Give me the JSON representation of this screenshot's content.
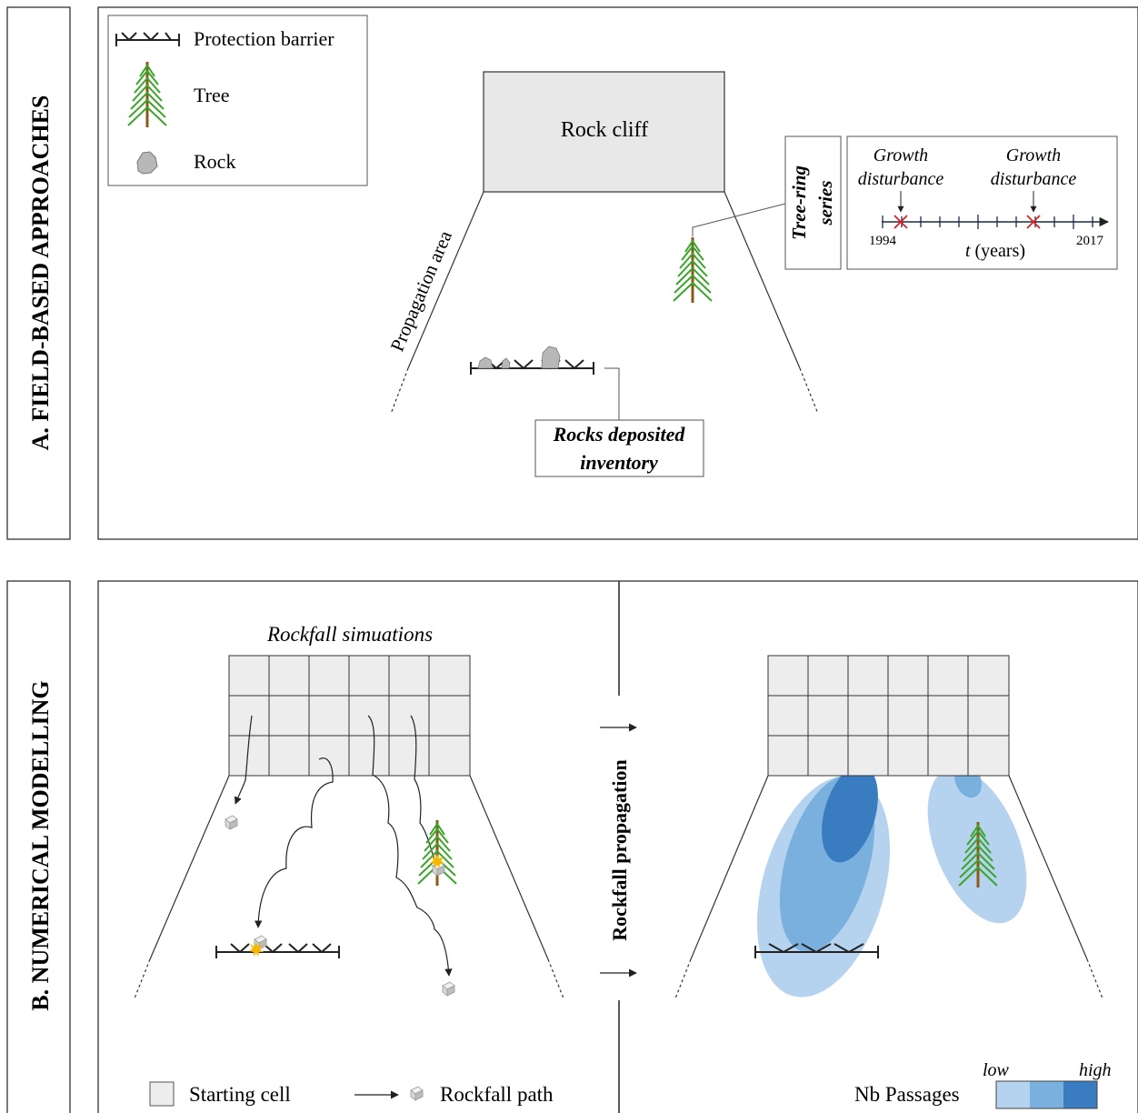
{
  "panel_a": {
    "side_title": "A. FIELD-BASED APPROACHES",
    "legend": {
      "barrier_label": "Protection barrier",
      "tree_label": "Tree",
      "rock_label": "Rock"
    },
    "cliff_label": "Rock cliff",
    "propagation_label": "Propagation area",
    "tree_ring": {
      "label_line1": "Tree-ring",
      "label_line2": "series",
      "disturbance1_line1": "Growth",
      "disturbance1_line2": "disturbance",
      "disturbance2_line1": "Growth",
      "disturbance2_line2": "disturbance",
      "start_year": "1994",
      "end_year": "2017",
      "axis_var": "t",
      "axis_unit": " (years)"
    },
    "inventory_line1": "Rocks deposited",
    "inventory_line2": "inventory"
  },
  "panel_b": {
    "side_title": "B. NUMERICAL MODELLING",
    "simulations_title": "Rockfall simuations",
    "propagation_label": "Rockfall propagation",
    "legend": {
      "starting_cell_label": "Starting cell",
      "rockfall_path_label": "Rockfall path",
      "nb_passages_label": "Nb Passages",
      "low_label": "low",
      "high_label": "high"
    }
  },
  "colors": {
    "tree_green": "#3aa52a",
    "trunk": "#8b5a1a",
    "rock_gray": "#b8b8b8",
    "cliff_fill": "#e8e8e8",
    "cell_fill": "#ededed",
    "impact_yellow": "#f5b800",
    "cross_red": "#e02020",
    "density_low": "#b5d2ee",
    "density_mid": "#79b0de",
    "density_high": "#3a7cc0"
  }
}
